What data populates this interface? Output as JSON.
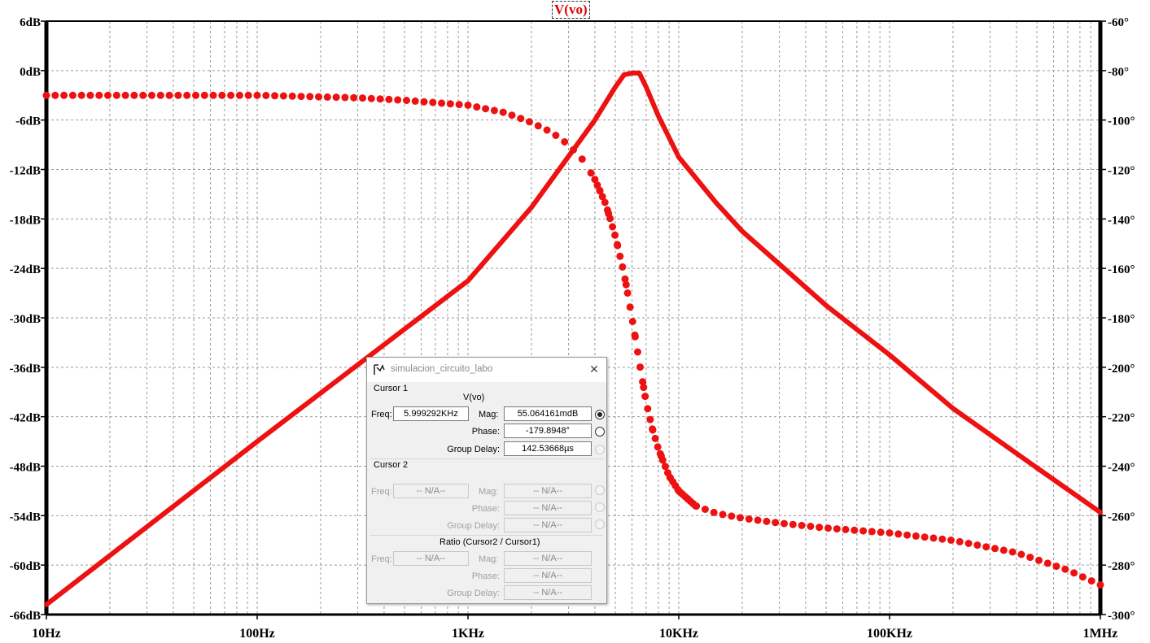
{
  "chart_data": {
    "type": "line",
    "title": "V(vo)",
    "x_scale": "log",
    "x_range_hz": [
      10,
      1000000
    ],
    "x_tick_labels": [
      "10Hz",
      "100Hz",
      "1KHz",
      "10KHz",
      "100KHz",
      "1MHz"
    ],
    "y_left_range_db": [
      -66,
      6
    ],
    "y_left_tick_labels": [
      "6dB",
      "0dB",
      "-6dB",
      "-12dB",
      "-18dB",
      "-24dB",
      "-30dB",
      "-36dB",
      "-42dB",
      "-48dB",
      "-54dB",
      "-60dB",
      "-66dB"
    ],
    "y_right_range_deg": [
      -300,
      -60
    ],
    "y_right_tick_labels": [
      "-60°",
      "-80°",
      "-100°",
      "-120°",
      "-140°",
      "-160°",
      "-180°",
      "-200°",
      "-220°",
      "-240°",
      "-260°",
      "-280°",
      "-300°"
    ],
    "grid": true,
    "trace_color": "#ee1111",
    "series": [
      {
        "style": "solid",
        "axis": "left",
        "x": [
          10,
          100,
          1000,
          2000,
          3000,
          4000,
          5000,
          5500,
          6000,
          6500,
          7000,
          8000,
          10000,
          15000,
          20000,
          50000,
          100000,
          200000,
          500000,
          1000000
        ],
        "y": [
          -64.8,
          -45,
          -25.5,
          -16.6,
          -10.4,
          -6,
          -2,
          -0.5,
          -0.3,
          -0.3,
          -2,
          -5.5,
          -10.5,
          -16,
          -19.5,
          -28.5,
          -34.5,
          -41,
          -48.2,
          -53.6
        ]
      },
      {
        "style": "dotted",
        "axis": "right",
        "x": [
          10,
          100,
          300,
          500,
          1000,
          1500,
          2000,
          2500,
          3000,
          3500,
          4000,
          4500,
          5000,
          5500,
          6000,
          6500,
          7000,
          7500,
          8000,
          9000,
          10000,
          12000,
          15000,
          20000,
          30000,
          50000,
          100000,
          200000,
          400000,
          700000,
          1000000
        ],
        "y": [
          -90,
          -90,
          -91,
          -92,
          -94,
          -97,
          -101,
          -105,
          -110,
          -116,
          -124,
          -134,
          -147,
          -162,
          -180,
          -198,
          -214,
          -225,
          -233,
          -244,
          -250,
          -256,
          -259,
          -261,
          -263,
          -265,
          -267,
          -270,
          -275,
          -282,
          -288
        ]
      }
    ]
  },
  "dialog": {
    "title": "simulacion_circuito_labo",
    "cursor1_label": "Cursor 1",
    "trace_name": "V(vo)",
    "cursor2_label": "Cursor 2",
    "ratio_label": "Ratio (Cursor2 / Cursor1)",
    "freq_label": "Freq:",
    "mag_label": "Mag:",
    "phase_label": "Phase:",
    "group_delay_label": "Group Delay:",
    "c1_freq": "5.999292KHz",
    "c1_mag": "55.064161mdB",
    "c1_phase": "-179.8948°",
    "c1_group_delay": "142.53668µs",
    "na": "-- N/A--"
  }
}
